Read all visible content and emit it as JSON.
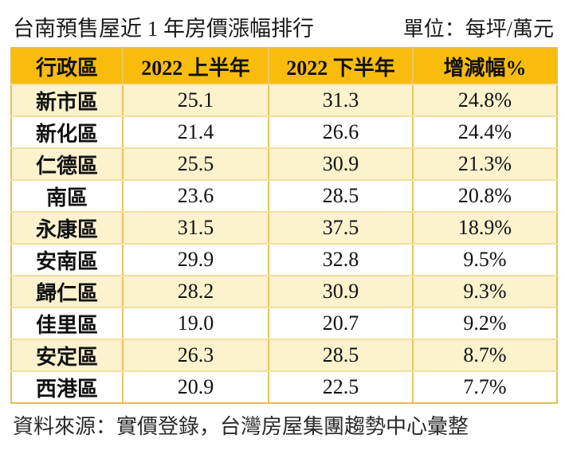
{
  "header": {
    "title": "台南預售屋近 1 年房價漲幅排行",
    "unit_label": "單位：每坪/萬元"
  },
  "table": {
    "headers": [
      "行政區",
      "2022 上半年",
      "2022 下半年",
      "增減幅%"
    ],
    "rows": [
      [
        "新市區",
        "25.1",
        "31.3",
        "24.8%"
      ],
      [
        "新化區",
        "21.4",
        "26.6",
        "24.4%"
      ],
      [
        "仁德區",
        "25.5",
        "30.9",
        "21.3%"
      ],
      [
        "南區",
        "23.6",
        "28.5",
        "20.8%"
      ],
      [
        "永康區",
        "31.5",
        "37.5",
        "18.9%"
      ],
      [
        "安南區",
        "29.9",
        "32.8",
        "9.5%"
      ],
      [
        "歸仁區",
        "28.2",
        "30.9",
        "9.3%"
      ],
      [
        "佳里區",
        "19.0",
        "20.7",
        "9.2%"
      ],
      [
        "安定區",
        "26.3",
        "28.5",
        "8.7%"
      ],
      [
        "西港區",
        "20.9",
        "22.5",
        "7.7%"
      ]
    ]
  },
  "footer": {
    "source": "資料來源：實價登錄，台灣房屋集團趨勢中心彙整"
  },
  "colors": {
    "header_bg": "#f9bc0d",
    "row_cream": "#fcf2ce",
    "row_white": "#ffffff",
    "border_vertical": "#e9c45e",
    "border_horizontal": "#f2df9e",
    "border_outer": "#e5be55",
    "text": "#111111"
  },
  "chart_data": {
    "type": "table",
    "title": "台南預售屋近 1 年房價漲幅排行",
    "unit": "每坪/萬元",
    "columns": [
      "行政區",
      "2022 上半年",
      "2022 下半年",
      "增減幅%"
    ],
    "rows": [
      {
        "district": "新市區",
        "h1_2022": 25.1,
        "h2_2022": 31.3,
        "change_pct": 24.8
      },
      {
        "district": "新化區",
        "h1_2022": 21.4,
        "h2_2022": 26.6,
        "change_pct": 24.4
      },
      {
        "district": "仁德區",
        "h1_2022": 25.5,
        "h2_2022": 30.9,
        "change_pct": 21.3
      },
      {
        "district": "南區",
        "h1_2022": 23.6,
        "h2_2022": 28.5,
        "change_pct": 20.8
      },
      {
        "district": "永康區",
        "h1_2022": 31.5,
        "h2_2022": 37.5,
        "change_pct": 18.9
      },
      {
        "district": "安南區",
        "h1_2022": 29.9,
        "h2_2022": 32.8,
        "change_pct": 9.5
      },
      {
        "district": "歸仁區",
        "h1_2022": 28.2,
        "h2_2022": 30.9,
        "change_pct": 9.3
      },
      {
        "district": "佳里區",
        "h1_2022": 19.0,
        "h2_2022": 20.7,
        "change_pct": 9.2
      },
      {
        "district": "安定區",
        "h1_2022": 26.3,
        "h2_2022": 28.5,
        "change_pct": 8.7
      },
      {
        "district": "西港區",
        "h1_2022": 20.9,
        "h2_2022": 22.5,
        "change_pct": 7.7
      }
    ],
    "source": "資料來源：實價登錄，台灣房屋集團趨勢中心彙整"
  }
}
